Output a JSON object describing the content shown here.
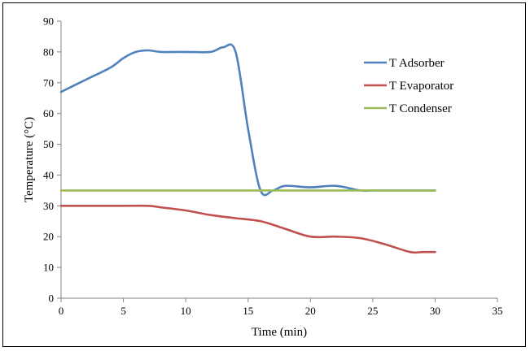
{
  "chart_data": {
    "type": "line",
    "title": "",
    "xlabel": "Time (min)",
    "ylabel": "Temperature (°C)",
    "xlim": [
      0,
      35
    ],
    "ylim": [
      0,
      90
    ],
    "xticks": [
      0,
      5,
      10,
      15,
      20,
      25,
      30,
      35
    ],
    "yticks": [
      0,
      10,
      20,
      30,
      40,
      50,
      60,
      70,
      80,
      90
    ],
    "grid": false,
    "legend_position": "right",
    "series": [
      {
        "name": "T Adsorber",
        "color": "#4F81BD",
        "x": [
          0,
          2,
          4,
          5,
          6,
          7,
          8,
          10,
          12,
          13,
          14,
          15,
          16,
          17,
          18,
          20,
          22,
          24,
          25,
          27,
          30
        ],
        "y": [
          67,
          71,
          75,
          78,
          80,
          80.5,
          80,
          80,
          80,
          81.5,
          80,
          55,
          35,
          35,
          36.5,
          36,
          36.5,
          35,
          35,
          35,
          35
        ]
      },
      {
        "name": "T Evaporator",
        "color": "#C0504D",
        "x": [
          0,
          2,
          5,
          7,
          8,
          10,
          12,
          14,
          16,
          18,
          20,
          22,
          24,
          26,
          28,
          29,
          30
        ],
        "y": [
          30,
          30,
          30,
          30,
          29.5,
          28.5,
          27,
          26,
          25,
          22.5,
          20,
          20,
          19.5,
          17.5,
          15,
          15,
          15
        ]
      },
      {
        "name": "T Condenser",
        "color": "#9BBB59",
        "x": [
          0,
          5,
          10,
          15,
          20,
          25,
          30
        ],
        "y": [
          35,
          35,
          35,
          35,
          35,
          35,
          35
        ]
      }
    ]
  }
}
